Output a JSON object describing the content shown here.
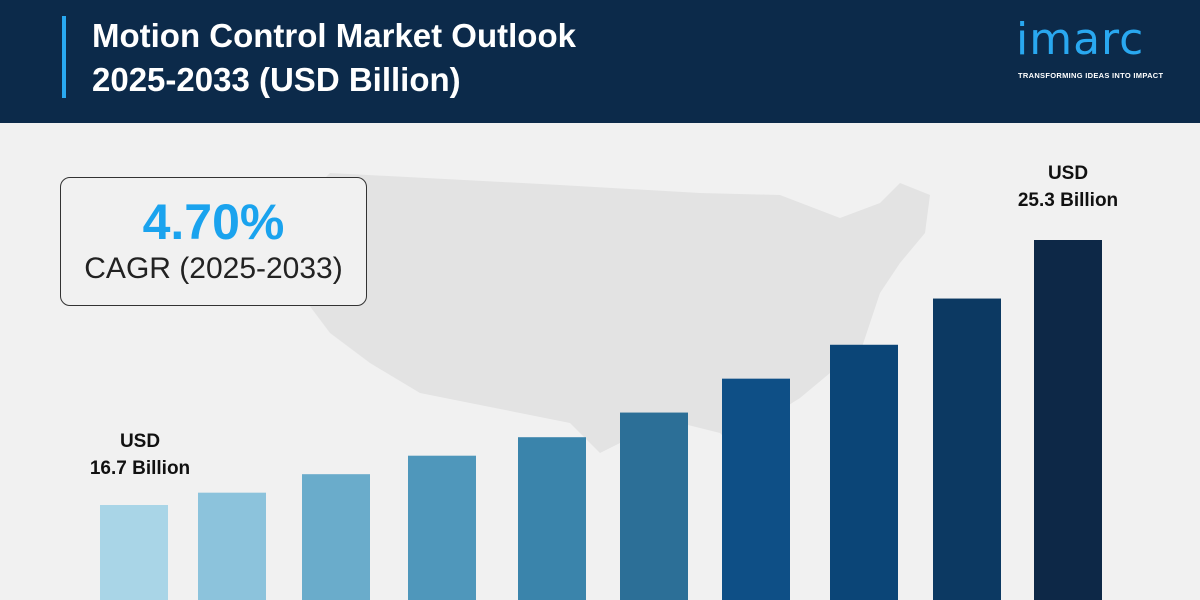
{
  "header": {
    "title_line1": "Motion Control Market Outlook",
    "title_line2": "2025-2033 (USD Billion)"
  },
  "logo": {
    "text": "imarc",
    "tagline": "TRANSFORMING IDEAS INTO IMPACT"
  },
  "cagr": {
    "value": "4.70%",
    "label": "CAGR (2025-2033)"
  },
  "colors": {
    "header_bg": "#0c2a4a",
    "accent": "#29a8f0"
  },
  "chart_data": {
    "type": "bar",
    "values": [
      16.7,
      17.1,
      17.7,
      18.3,
      18.9,
      19.7,
      20.8,
      21.9,
      23.4,
      25.3
    ],
    "colors": [
      "#a9d5e7",
      "#8cc3dc",
      "#6aaccb",
      "#4f97bb",
      "#3a84ab",
      "#2c6f97",
      "#0e4f86",
      "#0b4577",
      "#0c3962",
      "#0d2847"
    ],
    "annotations": [
      {
        "bar": 0,
        "line1": "USD",
        "line2": "16.7 Billion"
      },
      {
        "bar": 9,
        "line1": "USD",
        "line2": "25.3 Billion"
      }
    ],
    "grid": false
  }
}
